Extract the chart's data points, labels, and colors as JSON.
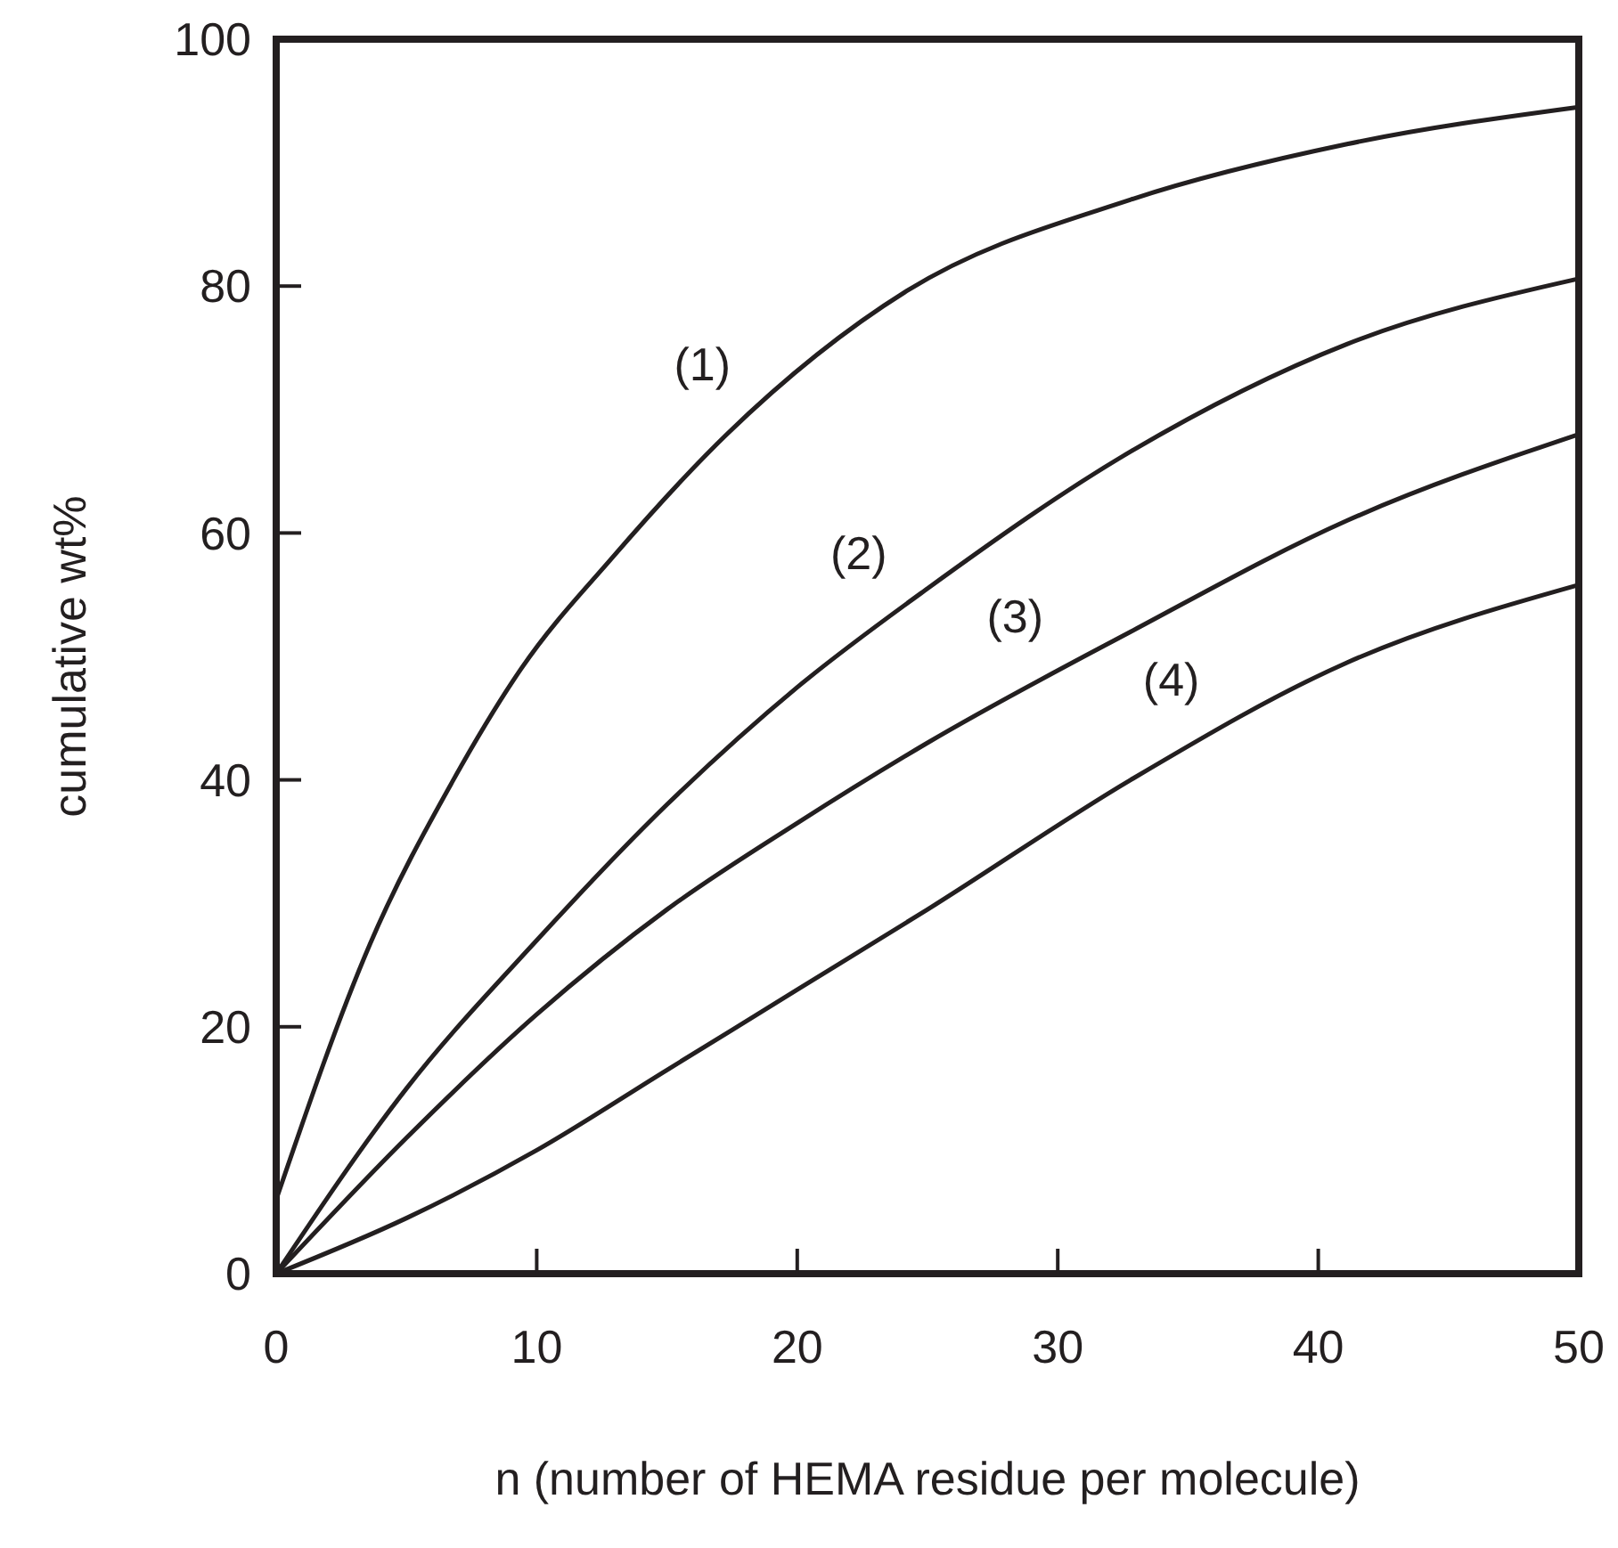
{
  "chart_data": {
    "type": "line",
    "xlabel": "n (number of HEMA residue per molecule)",
    "ylabel": "cumulative wt%",
    "xlim": [
      0,
      50
    ],
    "ylim": [
      0,
      100
    ],
    "xticks": [
      0,
      10,
      20,
      30,
      40,
      50
    ],
    "yticks": [
      0,
      20,
      40,
      60,
      80,
      100
    ],
    "grid": false,
    "marker": "none",
    "line_style": "solid",
    "series": [
      {
        "name": "(1)",
        "color": "#231f20",
        "x": [
          0,
          3.6,
          6.8,
          9.4,
          12.9,
          17.3,
          24.2,
          32.8,
          41.1,
          50
        ],
        "values": [
          6,
          26.7,
          40,
          49,
          58,
          68,
          79.6,
          87,
          91.5,
          94.5
        ]
      },
      {
        "name": "(2)",
        "color": "#231f20",
        "x": [
          0,
          5,
          10,
          15,
          20,
          25,
          32.8,
          41.1,
          50
        ],
        "values": [
          0,
          15,
          27,
          38,
          47.5,
          55.5,
          66.6,
          75.3,
          80.6
        ]
      },
      {
        "name": "(3)",
        "color": "#231f20",
        "x": [
          0,
          5,
          10,
          15,
          20,
          25,
          32.8,
          41.1,
          50
        ],
        "values": [
          0,
          11,
          21,
          29.5,
          36.5,
          43,
          52,
          61,
          68
        ]
      },
      {
        "name": "(4)",
        "color": "#231f20",
        "x": [
          0,
          5,
          10,
          15,
          20,
          25,
          32.8,
          41.1,
          50
        ],
        "values": [
          0,
          4.5,
          10,
          16.5,
          23,
          29.5,
          40,
          49.5,
          55.8
        ]
      }
    ]
  }
}
